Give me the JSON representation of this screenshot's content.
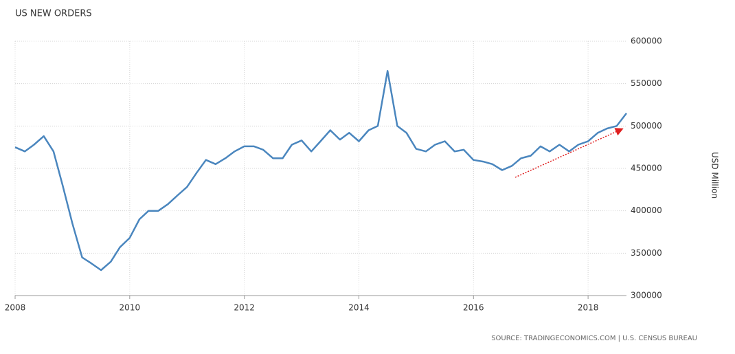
{
  "chart_data": {
    "type": "line",
    "title": "US NEW ORDERS",
    "y_label": "USD Million",
    "source": "SOURCE: TRADINGECONOMICS.COM | U.S. CENSUS BUREAU",
    "x": [
      2008.0,
      2008.17,
      2008.33,
      2008.5,
      2008.67,
      2008.83,
      2009.0,
      2009.17,
      2009.33,
      2009.5,
      2009.67,
      2009.83,
      2010.0,
      2010.17,
      2010.33,
      2010.5,
      2010.67,
      2010.83,
      2011.0,
      2011.17,
      2011.33,
      2011.5,
      2011.67,
      2011.83,
      2012.0,
      2012.17,
      2012.33,
      2012.5,
      2012.67,
      2012.83,
      2013.0,
      2013.17,
      2013.33,
      2013.5,
      2013.67,
      2013.83,
      2014.0,
      2014.17,
      2014.33,
      2014.5,
      2014.67,
      2014.83,
      2015.0,
      2015.17,
      2015.33,
      2015.5,
      2015.67,
      2015.83,
      2016.0,
      2016.17,
      2016.33,
      2016.5,
      2016.67,
      2016.83,
      2017.0,
      2017.17,
      2017.33,
      2017.5,
      2017.67,
      2017.83,
      2018.0,
      2018.17,
      2018.33,
      2018.5,
      2018.67
    ],
    "series": [
      {
        "name": "US New Orders",
        "color": "#4a86be",
        "values": [
          475000,
          470000,
          478000,
          488000,
          470000,
          430000,
          385000,
          345000,
          338000,
          330000,
          340000,
          357000,
          368000,
          390000,
          400000,
          400000,
          408000,
          418000,
          428000,
          445000,
          460000,
          455000,
          462000,
          470000,
          476000,
          476000,
          472000,
          462000,
          462000,
          478000,
          483000,
          470000,
          482000,
          495000,
          484000,
          492000,
          482000,
          495000,
          500000,
          565000,
          500000,
          492000,
          473000,
          470000,
          478000,
          482000,
          470000,
          472000,
          460000,
          458000,
          455000,
          448000,
          453000,
          462000,
          465000,
          476000,
          470000,
          478000,
          470000,
          478000,
          482000,
          492000,
          497000,
          500000,
          515000
        ]
      }
    ],
    "xlim": [
      2008,
      2018.67
    ],
    "xticks": [
      2008,
      2010,
      2012,
      2014,
      2016,
      2018
    ],
    "ylim": [
      300000,
      600000
    ],
    "yticks": [
      300000,
      350000,
      400000,
      450000,
      500000,
      550000,
      600000
    ],
    "grid": true
  }
}
